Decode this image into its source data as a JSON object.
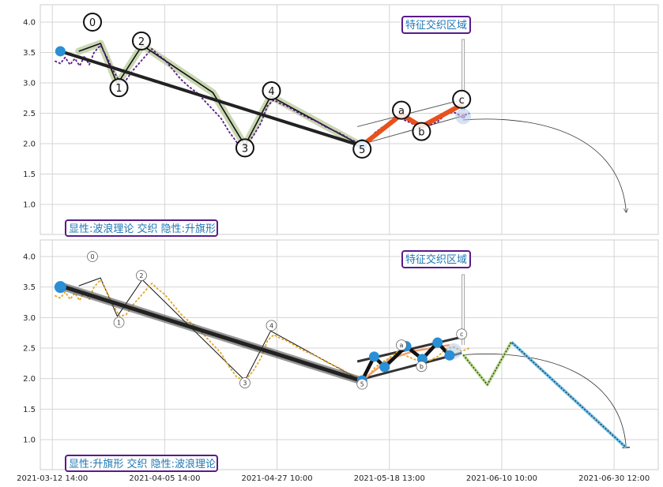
{
  "chart_data": [
    {
      "type": "line",
      "panel": "top",
      "ylim": [
        0.45,
        4.28
      ],
      "yticks": [
        "1.0",
        "1.5",
        "2.0",
        "2.5",
        "3.0",
        "3.5",
        "4.0"
      ],
      "grid": true,
      "feature_box_label": "特征交织区域",
      "bottom_label": "显性:波浪理论 交织 隐性:升旗形",
      "price_color": "#5b1a8b",
      "price": [
        [
          0.3,
          3.36
        ],
        [
          1,
          3.32
        ],
        [
          1.6,
          3.42
        ],
        [
          2.2,
          3.3
        ],
        [
          2.8,
          3.4
        ],
        [
          3.4,
          3.28
        ],
        [
          4,
          3.44
        ],
        [
          4.6,
          3.3
        ],
        [
          5.2,
          3.5
        ],
        [
          6,
          3.62
        ],
        [
          6.8,
          3.42
        ],
        [
          7.6,
          3.2
        ],
        [
          8.4,
          3.02
        ],
        [
          9.2,
          3.05
        ],
        [
          10,
          3.2
        ],
        [
          10.8,
          3.32
        ],
        [
          11.6,
          3.44
        ],
        [
          12.4,
          3.56
        ],
        [
          13.2,
          3.46
        ],
        [
          14,
          3.38
        ],
        [
          15,
          3.22
        ],
        [
          16,
          3.06
        ],
        [
          17,
          2.94
        ],
        [
          18,
          2.84
        ],
        [
          19,
          2.7
        ],
        [
          20,
          2.56
        ],
        [
          21,
          2.42
        ],
        [
          22,
          2.2
        ],
        [
          23,
          2.02
        ],
        [
          24,
          1.97
        ],
        [
          25,
          2.12
        ],
        [
          26,
          2.34
        ],
        [
          26.8,
          2.62
        ],
        [
          27.6,
          2.72
        ],
        [
          28.4,
          2.66
        ],
        [
          29.2,
          2.62
        ],
        [
          30,
          2.56
        ],
        [
          31,
          2.48
        ],
        [
          32,
          2.42
        ],
        [
          33,
          2.36
        ],
        [
          34,
          2.28
        ],
        [
          35,
          2.22
        ],
        [
          36,
          2.16
        ],
        [
          37,
          2.08
        ],
        [
          38,
          2.02
        ],
        [
          38.6,
          1.98
        ],
        [
          39.4,
          2.04
        ],
        [
          40.2,
          2.18
        ],
        [
          41,
          2.26
        ],
        [
          42,
          2.34
        ],
        [
          43,
          2.44
        ],
        [
          44,
          2.38
        ],
        [
          45,
          2.32
        ],
        [
          46,
          2.28
        ],
        [
          47,
          2.3
        ],
        [
          48,
          2.36
        ],
        [
          49,
          2.48
        ],
        [
          50,
          2.52
        ],
        [
          51,
          2.45
        ],
        [
          52,
          2.5
        ]
      ],
      "wave_path": [
        [
          3.3,
          3.52
        ],
        [
          6,
          3.65
        ],
        [
          8.1,
          2.98
        ],
        [
          11.2,
          3.62
        ],
        [
          20,
          2.84
        ],
        [
          24,
          1.97
        ],
        [
          27.2,
          2.78
        ],
        [
          38.6,
          1.96
        ]
      ],
      "wave_labels": [
        {
          "text": "0",
          "x": 5,
          "y": 4.0
        },
        {
          "text": "1",
          "x": 8.3,
          "y": 2.92
        },
        {
          "text": "2",
          "x": 11.1,
          "y": 3.69
        },
        {
          "text": "3",
          "x": 24,
          "y": 1.93
        },
        {
          "text": "4",
          "x": 27.3,
          "y": 2.87
        },
        {
          "text": "5",
          "x": 38.6,
          "y": 1.91
        }
      ],
      "trend_line": [
        [
          1,
          3.52
        ],
        [
          38.6,
          1.96
        ]
      ],
      "corrective_path": [
        [
          38.6,
          1.97
        ],
        [
          43.5,
          2.48
        ],
        [
          46,
          2.28
        ],
        [
          51,
          2.64
        ]
      ],
      "corrective_labels": [
        {
          "text": "a",
          "x": 43.5,
          "y": 2.55
        },
        {
          "text": "b",
          "x": 46,
          "y": 2.2
        },
        {
          "text": "c",
          "x": 51,
          "y": 2.73
        }
      ],
      "channel_upper": [
        [
          38,
          2.28
        ],
        [
          51,
          2.72
        ]
      ],
      "channel_lower": [
        [
          38,
          1.97
        ],
        [
          51,
          2.45
        ]
      ],
      "start_marker": [
        1,
        3.52
      ],
      "end_marker": [
        38.6,
        1.99
      ],
      "end_marker_end": [
        51.2,
        2.45
      ],
      "projection_arc": [
        [
          51.2,
          2.39
        ],
        [
          71.5,
          0.87
        ]
      ]
    },
    {
      "type": "line",
      "panel": "bottom",
      "ylim": [
        0.45,
        4.28
      ],
      "yticks": [
        "1.0",
        "1.5",
        "2.0",
        "2.5",
        "3.0",
        "3.5",
        "4.0"
      ],
      "grid": true,
      "feature_box_label": "特征交织区域",
      "bottom_label": "显性:升旗形 交织 隐性:波浪理论",
      "xticks": [
        "2021-03-12 14:00",
        "2021-04-05 14:00",
        "2021-04-27 10:00",
        "2021-05-18 13:00",
        "2021-06-10 10:00",
        "2021-06-30 12:00"
      ],
      "price_color": "#e2a72b",
      "price": [
        [
          0.3,
          3.36
        ],
        [
          1,
          3.32
        ],
        [
          1.6,
          3.42
        ],
        [
          2.2,
          3.3
        ],
        [
          2.8,
          3.4
        ],
        [
          3.4,
          3.28
        ],
        [
          4,
          3.44
        ],
        [
          4.6,
          3.3
        ],
        [
          5.2,
          3.5
        ],
        [
          6,
          3.62
        ],
        [
          6.8,
          3.42
        ],
        [
          7.6,
          3.2
        ],
        [
          8.4,
          3.02
        ],
        [
          9.2,
          3.05
        ],
        [
          10,
          3.2
        ],
        [
          10.8,
          3.32
        ],
        [
          11.6,
          3.44
        ],
        [
          12.4,
          3.56
        ],
        [
          13.2,
          3.46
        ],
        [
          14,
          3.38
        ],
        [
          15,
          3.22
        ],
        [
          16,
          3.06
        ],
        [
          17,
          2.94
        ],
        [
          18,
          2.84
        ],
        [
          19,
          2.7
        ],
        [
          20,
          2.56
        ],
        [
          21,
          2.42
        ],
        [
          22,
          2.2
        ],
        [
          23,
          2.02
        ],
        [
          24,
          1.97
        ],
        [
          25,
          2.12
        ],
        [
          26,
          2.34
        ],
        [
          26.8,
          2.62
        ],
        [
          27.6,
          2.72
        ],
        [
          28.4,
          2.66
        ],
        [
          29.2,
          2.62
        ],
        [
          30,
          2.56
        ],
        [
          31,
          2.48
        ],
        [
          32,
          2.42
        ],
        [
          33,
          2.36
        ],
        [
          34,
          2.28
        ],
        [
          35,
          2.22
        ],
        [
          36,
          2.16
        ],
        [
          37,
          2.08
        ],
        [
          38,
          2.02
        ],
        [
          38.6,
          1.98
        ],
        [
          39.4,
          2.04
        ],
        [
          40.2,
          2.18
        ],
        [
          41,
          2.26
        ],
        [
          42,
          2.34
        ],
        [
          43,
          2.44
        ],
        [
          44,
          2.38
        ],
        [
          45,
          2.32
        ],
        [
          46,
          2.28
        ],
        [
          47,
          2.3
        ],
        [
          48,
          2.36
        ],
        [
          49,
          2.48
        ],
        [
          50,
          2.52
        ],
        [
          51,
          2.45
        ],
        [
          52,
          2.5
        ]
      ],
      "wave_path": [
        [
          3.3,
          3.52
        ],
        [
          6,
          3.65
        ],
        [
          8.1,
          3.02
        ],
        [
          11.2,
          3.62
        ],
        [
          24,
          1.97
        ],
        [
          27.2,
          2.78
        ],
        [
          38.6,
          1.96
        ]
      ],
      "wave_labels": [
        {
          "text": "0",
          "x": 5,
          "y": 4.0
        },
        {
          "text": "1",
          "x": 8.3,
          "y": 2.92
        },
        {
          "text": "2",
          "x": 11.1,
          "y": 3.69
        },
        {
          "text": "3",
          "x": 24,
          "y": 1.93
        },
        {
          "text": "4",
          "x": 27.3,
          "y": 2.87
        },
        {
          "text": "5",
          "x": 38.6,
          "y": 1.91
        }
      ],
      "trend_line": [
        [
          1,
          3.52
        ],
        [
          38.6,
          1.96
        ]
      ],
      "flag_path": [
        [
          38.6,
          1.97
        ],
        [
          40.1,
          2.36
        ],
        [
          41.4,
          2.19
        ],
        [
          44.1,
          2.53
        ],
        [
          46.1,
          2.32
        ],
        [
          48,
          2.59
        ],
        [
          49.5,
          2.38
        ]
      ],
      "flag_points": [
        [
          1,
          3.5
        ],
        [
          38.6,
          1.97
        ],
        [
          40.1,
          2.36
        ],
        [
          41.4,
          2.19
        ],
        [
          44.1,
          2.53
        ],
        [
          46.1,
          2.32
        ],
        [
          48,
          2.59
        ],
        [
          49.5,
          2.38
        ]
      ],
      "corrective_labels": [
        {
          "text": "a",
          "x": 43.5,
          "y": 2.55
        },
        {
          "text": "b",
          "x": 46,
          "y": 2.2
        },
        {
          "text": "c",
          "x": 51,
          "y": 2.73
        }
      ],
      "channel_upper": [
        [
          38,
          2.28
        ],
        [
          51,
          2.68
        ]
      ],
      "channel_lower": [
        [
          38,
          1.97
        ],
        [
          51,
          2.42
        ]
      ],
      "projection_path": [
        [
          51.2,
          2.39
        ],
        [
          54.2,
          1.9
        ],
        [
          57.2,
          2.6
        ],
        [
          71.5,
          0.87
        ]
      ],
      "projection_arc": [
        [
          51.2,
          2.39
        ],
        [
          71.5,
          0.87
        ]
      ]
    }
  ]
}
